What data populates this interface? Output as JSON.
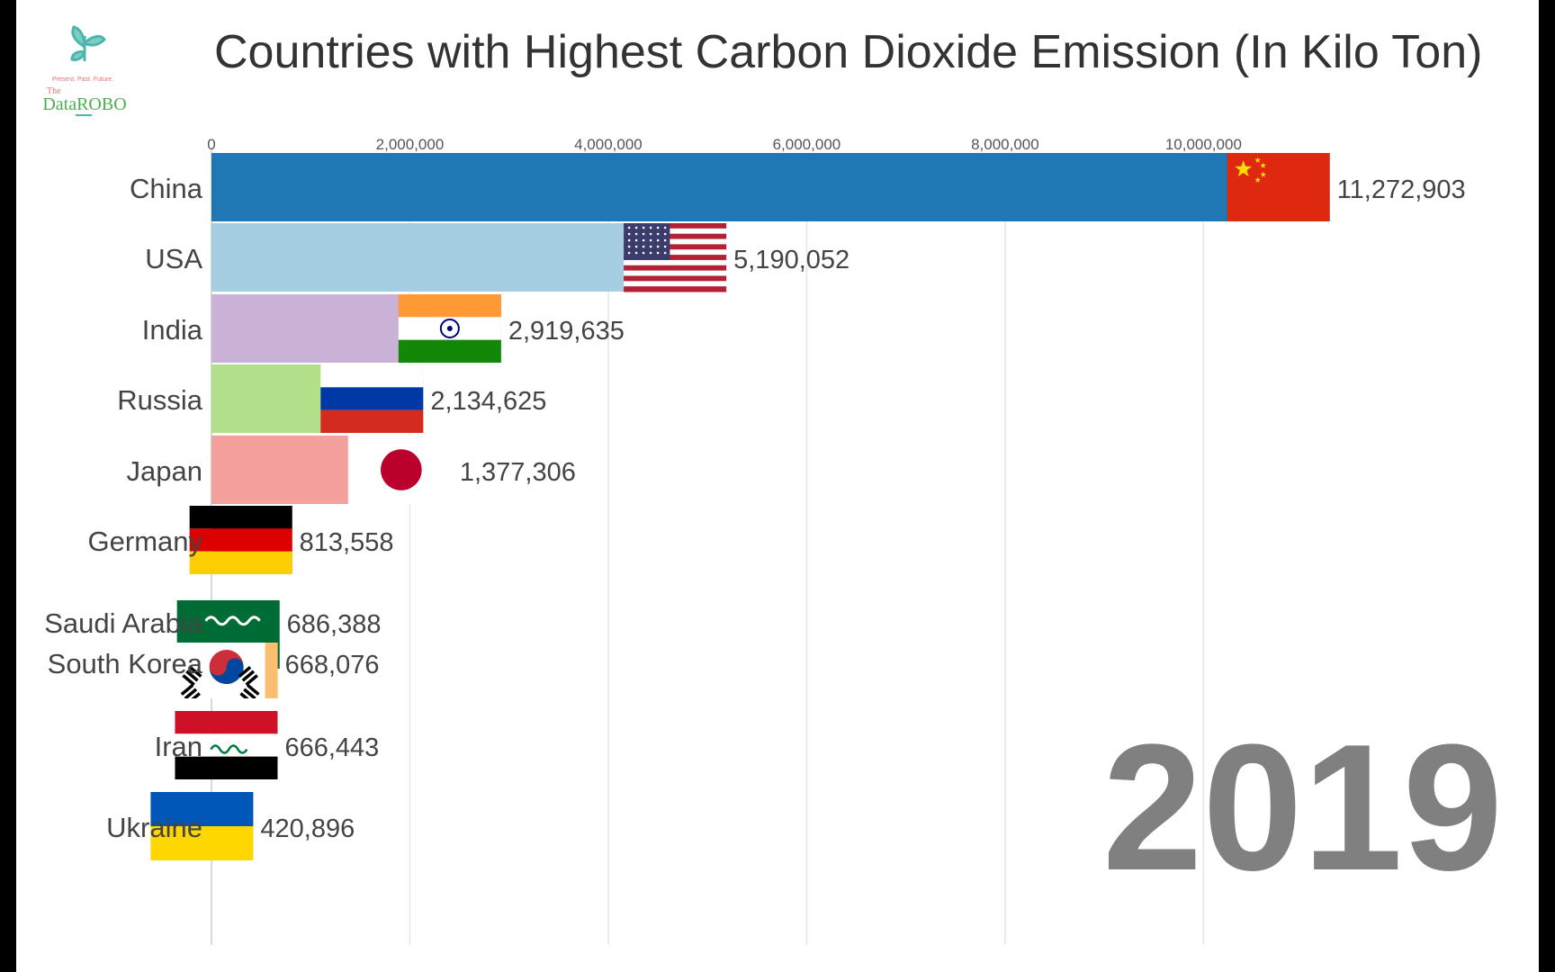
{
  "logo": {
    "tagline": "Present. Past. Future.",
    "brand_prefix": "The",
    "brand_name": "DataROBO"
  },
  "chart_data": {
    "type": "bar",
    "orientation": "horizontal",
    "title": "Countries with Highest Carbon Dioxide Emission (In Kilo Ton)",
    "year": "2019",
    "xlim": [
      0,
      12700000
    ],
    "x_ticks": [
      0,
      2000000,
      4000000,
      6000000,
      8000000,
      10000000
    ],
    "x_tick_labels": [
      "0",
      "2,000,000",
      "4,000,000",
      "6,000,000",
      "8,000,000",
      "10,000,000"
    ],
    "categories": [
      "China",
      "USA",
      "India",
      "Russia",
      "Japan",
      "Germany",
      "Saudi Arabia",
      "South Korea",
      "Iran",
      "Ukraine"
    ],
    "values": [
      11272903,
      5190052,
      2919635,
      2134625,
      1377306,
      813558,
      686388,
      668076,
      666443,
      420896
    ],
    "value_labels": [
      "11,272,903",
      "5,190,052",
      "2,919,635",
      "2,134,625",
      "1,377,306",
      "813,558",
      "686,388",
      "668,076",
      "666,443",
      "420,896"
    ],
    "colors": [
      "#1f77b4",
      "#a6cee3",
      "#cab2d6",
      "#b2df8a",
      "#f4a09c",
      "#e31a1c",
      "#33a02c",
      "#fdbf6f",
      "#ff7f00",
      "#f781bf"
    ],
    "flags": [
      "china-flag",
      "usa-flag",
      "india-flag",
      "russia-flag",
      "japan-flag",
      "germany-flag",
      "saudi-arabia-flag",
      "south-korea-flag",
      "iraq-flag",
      "ukraine-flag"
    ]
  }
}
